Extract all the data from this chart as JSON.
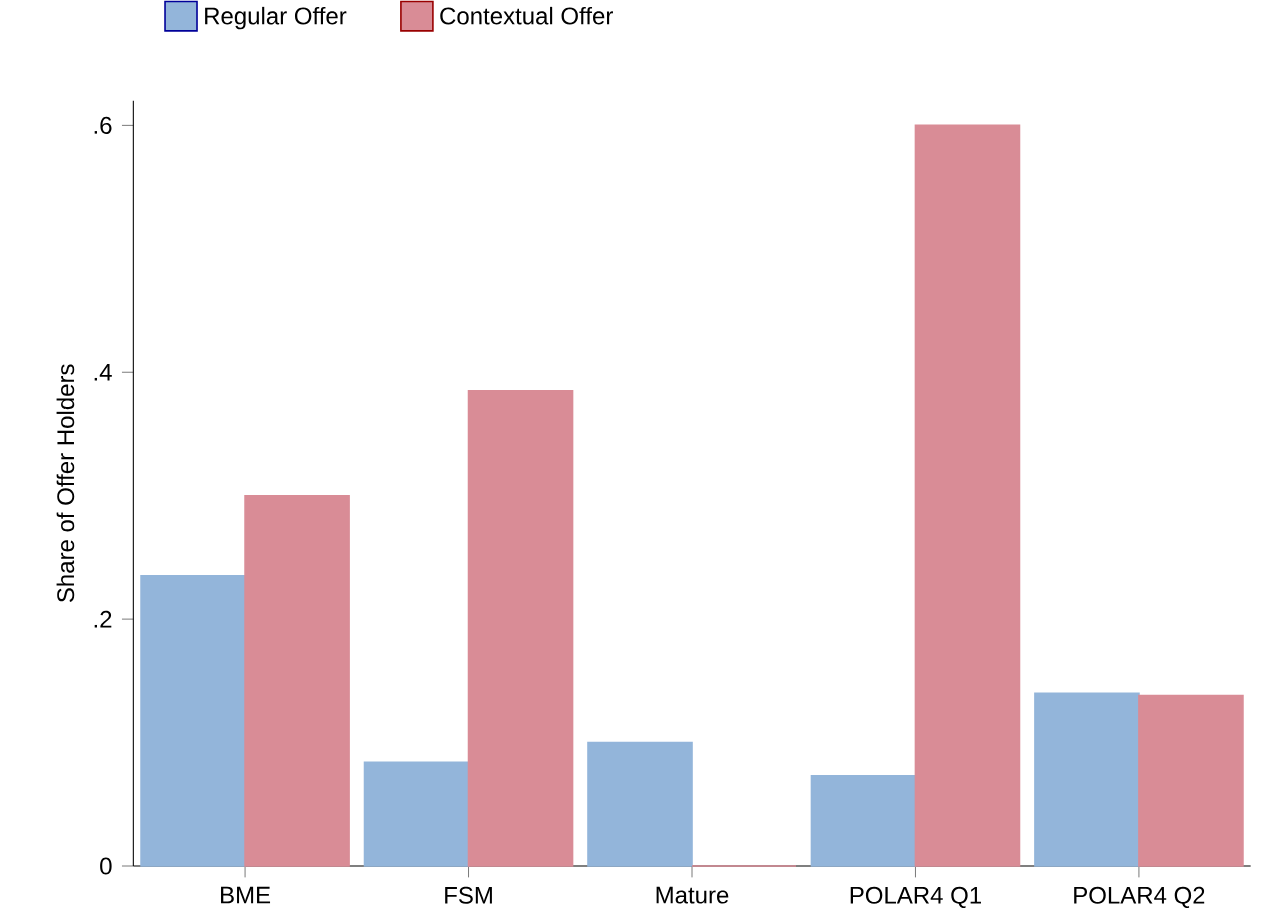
{
  "chart_data": {
    "type": "bar",
    "ylabel": "Share of Offer Holders",
    "categories": [
      "BME",
      "FSM",
      "Mature",
      "POLAR4 Q1",
      "POLAR4 Q2"
    ],
    "series": [
      {
        "name": "Regular Offer",
        "color": "#93b5da",
        "values": [
          0.235,
          0.084,
          0.1,
          0.073,
          0.14
        ]
      },
      {
        "name": "Contextual Offer",
        "color": "#d98c96",
        "values": [
          0.3,
          0.385,
          0,
          0.6,
          0.138
        ]
      }
    ],
    "ylim": [
      0,
      0.62
    ],
    "yticks": [
      {
        "value": 0,
        "label": "0"
      },
      {
        "value": 0.2,
        "label": ".2"
      },
      {
        "value": 0.4,
        "label": ".4"
      },
      {
        "value": 0.6,
        "label": ".6"
      }
    ],
    "grid": false,
    "legend": "top left"
  }
}
